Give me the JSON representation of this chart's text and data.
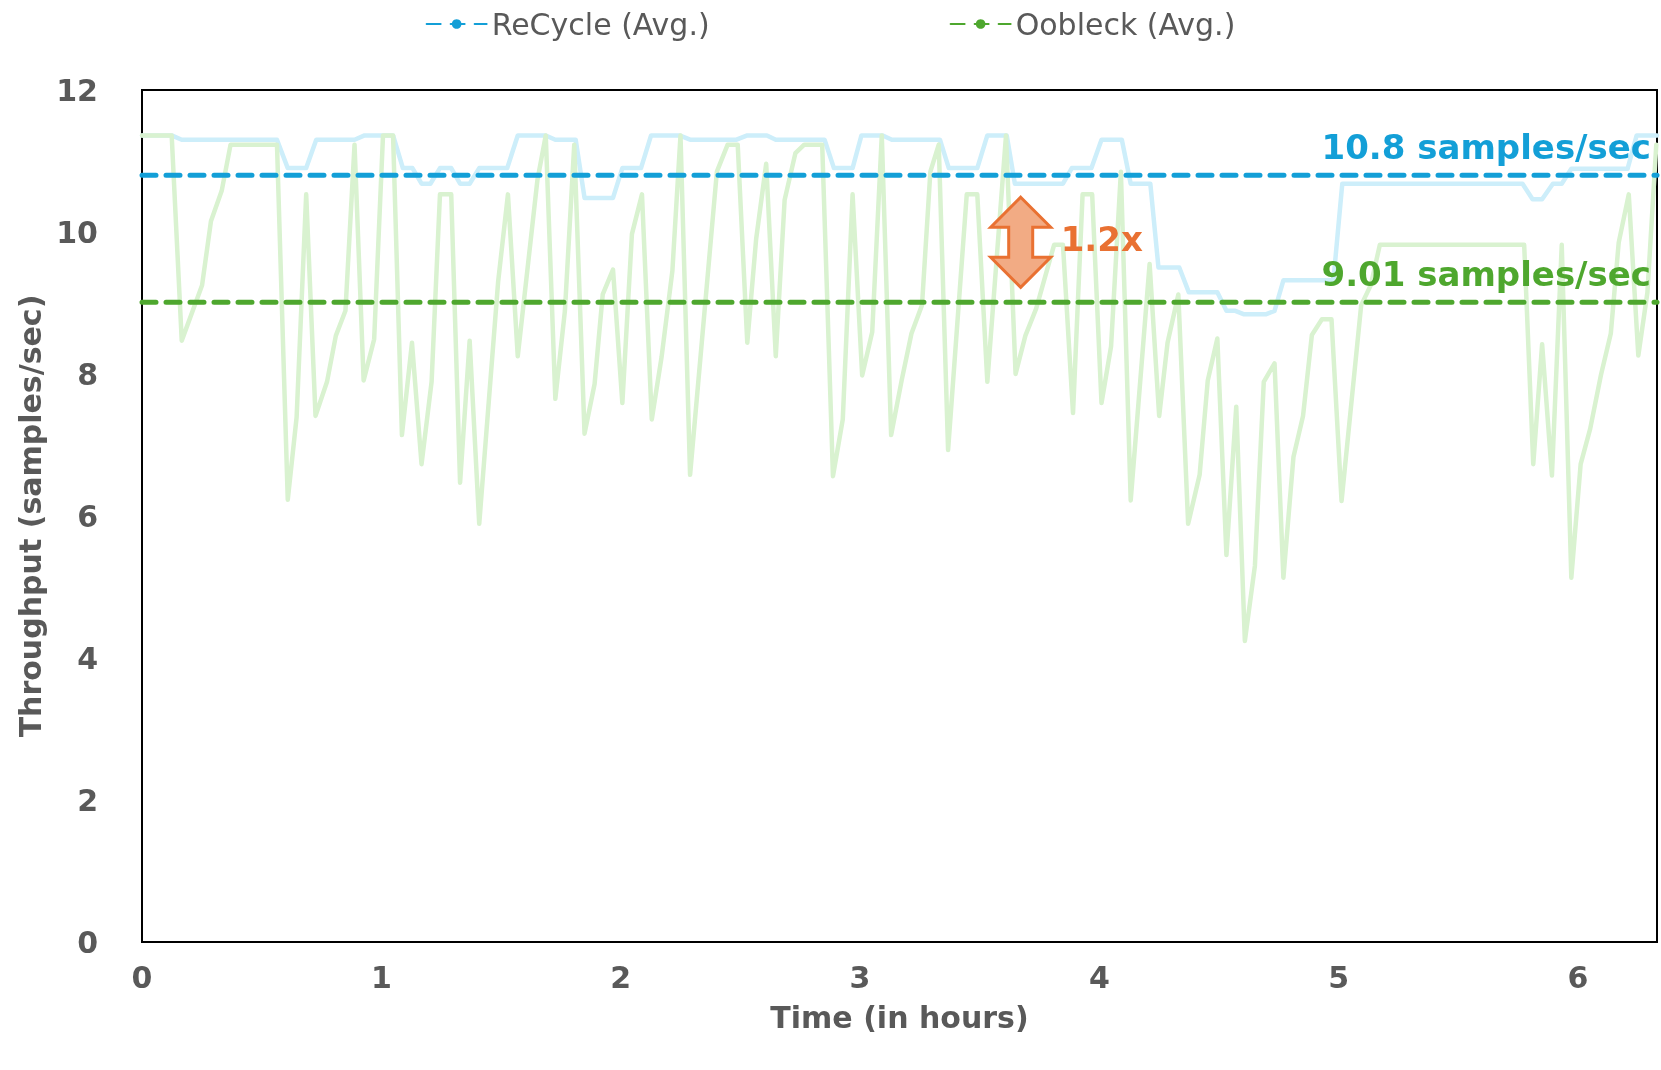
{
  "chart_data": {
    "type": "line",
    "xlabel": "Time (in hours)",
    "ylabel": "Throughput (samples/sec)",
    "xlim": [
      0,
      6.33
    ],
    "xticks": [
      0,
      1,
      2,
      3,
      4,
      5,
      6
    ],
    "ylim": [
      0,
      12
    ],
    "yticks": [
      0,
      2,
      4,
      6,
      8,
      10,
      12
    ],
    "grid": false,
    "legend": "top",
    "marker": "none",
    "line_style": "solid",
    "series": [
      {
        "color": "#cdeefa",
        "x": [
          0,
          0.124,
          0.166,
          0.564,
          0.609,
          0.686,
          0.728,
          0.888,
          0.93,
          1.049,
          1.09,
          1.13,
          1.168,
          1.205,
          1.245,
          1.292,
          1.329,
          1.369,
          1.409,
          1.526,
          1.57,
          1.687,
          1.727,
          1.812,
          1.849,
          1.968,
          2.007,
          2.085,
          2.127,
          2.246,
          2.29,
          2.484,
          2.529,
          2.611,
          2.648,
          2.852,
          2.891,
          2.969,
          3.006,
          3.095,
          3.133,
          3.334,
          3.371,
          3.49,
          3.532,
          3.613,
          3.647,
          3.848,
          3.885,
          3.967,
          4.009,
          4.094,
          4.131,
          4.213,
          4.247,
          4.334,
          4.374,
          4.493,
          4.531,
          4.568,
          4.605,
          4.695,
          4.732,
          4.769,
          4.978,
          5.015,
          5.768,
          5.81,
          5.85,
          5.895,
          5.932,
          5.972,
          6.207,
          6.245,
          6.33
        ],
        "values": [
          11.36,
          11.36,
          11.3,
          11.3,
          10.9,
          10.9,
          11.3,
          11.3,
          11.36,
          11.36,
          10.9,
          10.9,
          10.68,
          10.68,
          10.9,
          10.9,
          10.68,
          10.68,
          10.9,
          10.9,
          11.36,
          11.36,
          11.3,
          11.3,
          10.48,
          10.48,
          10.9,
          10.9,
          11.36,
          11.36,
          11.3,
          11.3,
          11.36,
          11.36,
          11.3,
          11.3,
          10.9,
          10.9,
          11.36,
          11.36,
          11.3,
          11.3,
          10.9,
          10.9,
          11.36,
          11.36,
          10.68,
          10.68,
          10.9,
          10.9,
          11.3,
          11.3,
          10.68,
          10.68,
          9.5,
          9.5,
          9.15,
          9.15,
          8.89,
          8.89,
          8.84,
          8.84,
          8.89,
          9.32,
          9.32,
          10.68,
          10.68,
          10.46,
          10.46,
          10.68,
          10.68,
          10.89,
          10.89,
          11.36,
          11.36
        ]
      },
      {
        "color": "#d9f2d0",
        "x": [
          0,
          0.124,
          0.166,
          0.251,
          0.288,
          0.333,
          0.37,
          0.564,
          0.609,
          0.646,
          0.686,
          0.725,
          0.773,
          0.81,
          0.85,
          0.888,
          0.926,
          0.97,
          1.007,
          1.049,
          1.086,
          1.128,
          1.168,
          1.21,
          1.245,
          1.292,
          1.329,
          1.369,
          1.409,
          1.488,
          1.529,
          1.57,
          1.652,
          1.687,
          1.727,
          1.767,
          1.806,
          1.849,
          1.891,
          1.925,
          1.968,
          2.007,
          2.047,
          2.089,
          2.13,
          2.171,
          2.216,
          2.25,
          2.29,
          2.402,
          2.447,
          2.489,
          2.529,
          2.566,
          2.608,
          2.648,
          2.685,
          2.73,
          2.767,
          2.842,
          2.887,
          2.928,
          2.969,
          3.009,
          3.051,
          3.091,
          3.13,
          3.174,
          3.215,
          3.259,
          3.294,
          3.329,
          3.368,
          3.446,
          3.49,
          3.532,
          3.61,
          3.65,
          3.691,
          3.736,
          3.811,
          3.848,
          3.89,
          3.93,
          3.97,
          4.009,
          4.049,
          4.09,
          4.131,
          4.21,
          4.25,
          4.285,
          4.33,
          4.371,
          4.419,
          4.453,
          4.493,
          4.531,
          4.572,
          4.608,
          4.65,
          4.687,
          4.732,
          4.769,
          4.811,
          4.851,
          4.888,
          4.93,
          4.97,
          5.012,
          5.094,
          5.134,
          5.172,
          5.775,
          5.813,
          5.85,
          5.891,
          5.932,
          5.972,
          6.011,
          6.051,
          6.096,
          6.137,
          6.17,
          6.212,
          6.252,
          6.29,
          6.327
        ],
        "values": [
          11.36,
          11.36,
          8.47,
          9.25,
          10.15,
          10.58,
          11.23,
          11.23,
          6.23,
          7.39,
          10.53,
          7.41,
          7.89,
          8.54,
          8.89,
          11.23,
          7.91,
          8.49,
          11.36,
          11.36,
          7.14,
          8.44,
          6.73,
          7.89,
          10.53,
          10.53,
          6.47,
          8.47,
          5.89,
          9.3,
          10.53,
          8.25,
          10.73,
          11.36,
          7.65,
          8.89,
          11.23,
          7.16,
          7.86,
          9.12,
          9.47,
          7.59,
          9.97,
          10.53,
          7.36,
          8.24,
          9.45,
          11.36,
          6.58,
          10.85,
          11.23,
          11.23,
          8.44,
          9.9,
          10.96,
          8.25,
          10.45,
          11.11,
          11.23,
          11.23,
          6.56,
          7.36,
          10.53,
          7.98,
          8.59,
          11.36,
          7.14,
          7.91,
          8.57,
          8.97,
          10.85,
          11.23,
          6.93,
          10.53,
          10.53,
          7.89,
          11.36,
          8.0,
          8.54,
          8.92,
          9.82,
          9.82,
          7.45,
          10.53,
          10.53,
          7.59,
          8.39,
          10.85,
          6.22,
          9.55,
          7.41,
          8.44,
          9.12,
          5.89,
          6.58,
          7.91,
          8.5,
          5.45,
          7.54,
          4.24,
          5.3,
          7.89,
          8.15,
          5.13,
          6.83,
          7.41,
          8.55,
          8.77,
          8.77,
          6.21,
          8.97,
          9.25,
          9.82,
          9.82,
          6.73,
          8.42,
          6.57,
          9.82,
          5.13,
          6.73,
          7.23,
          7.99,
          8.57,
          9.85,
          10.53,
          8.26,
          9.15,
          11.23
        ]
      },
      {
        "name": "ReCycle (Avg.)",
        "color": "#139fd7",
        "line_style": "dashed",
        "x": [
          0,
          6.33
        ],
        "values": [
          10.8,
          10.8
        ]
      },
      {
        "name": "Oobleck (Avg.)",
        "color": "#4ea72e",
        "line_style": "dashed",
        "x": [
          0,
          6.33
        ],
        "values": [
          9.01,
          9.01
        ]
      }
    ],
    "annotations": [
      "10.8 samples/sec",
      "9.01 samples/sec",
      "1.2x"
    ]
  }
}
